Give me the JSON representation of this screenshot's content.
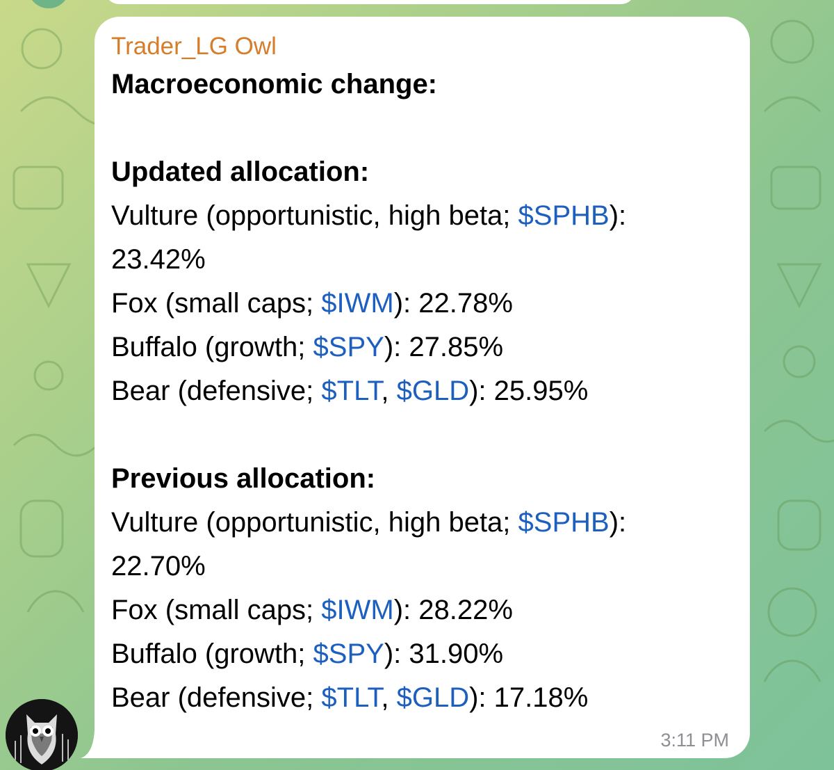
{
  "message": {
    "sender": "Trader_LG Owl",
    "time": "3:11 PM",
    "title": "Macroeconomic change:",
    "updated": {
      "heading": "Updated allocation:",
      "vulture": {
        "label": "Vulture (opportunistic, high beta; ",
        "ticker": "$SPHB",
        "suffix": "):",
        "value": "23.42%"
      },
      "fox": {
        "label": "Fox (small caps; ",
        "ticker": "$IWM",
        "suffix": "): 22.78%"
      },
      "buffalo": {
        "label": "Buffalo (growth; ",
        "ticker": "$SPY",
        "suffix": "): 27.85%"
      },
      "bear": {
        "label": "Bear (defensive; ",
        "ticker1": "$TLT",
        "sep": ", ",
        "ticker2": "$GLD",
        "suffix": "): 25.95%"
      }
    },
    "previous": {
      "heading": "Previous allocation:",
      "vulture": {
        "label": "Vulture (opportunistic, high beta; ",
        "ticker": "$SPHB",
        "suffix": "):",
        "value": "22.70%"
      },
      "fox": {
        "label": "Fox (small caps; ",
        "ticker": "$IWM",
        "suffix": "): 28.22%"
      },
      "buffalo": {
        "label": "Buffalo (growth; ",
        "ticker": "$SPY",
        "suffix": "): 31.90%"
      },
      "bear": {
        "label": "Bear (defensive; ",
        "ticker1": "$TLT",
        "sep": ", ",
        "ticker2": "$GLD",
        "suffix": "): 17.18%"
      }
    }
  },
  "colors": {
    "sender": "#d67d2b",
    "ticker_link": "#1c5fbf",
    "bubble": "#ffffff",
    "timestamp": "#8e8e93"
  },
  "icons": {
    "avatar": "owl-avatar-icon",
    "background": "doodle-pattern"
  }
}
